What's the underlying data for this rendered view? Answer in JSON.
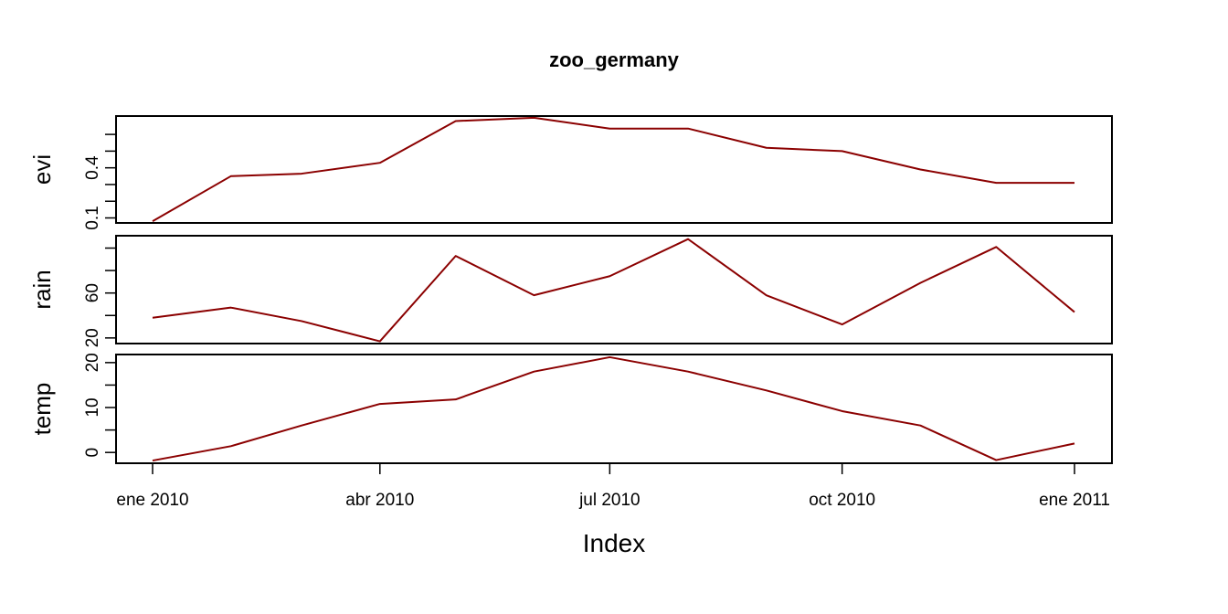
{
  "chart_data": {
    "type": "line",
    "title": "zoo_germany",
    "xlabel": "Index",
    "x": [
      "2010-01-01",
      "2010-02-01",
      "2010-03-01",
      "2010-04-01",
      "2010-05-01",
      "2010-06-01",
      "2010-07-01",
      "2010-08-01",
      "2010-09-01",
      "2010-10-01",
      "2010-11-01",
      "2010-12-01",
      "2011-01-01"
    ],
    "x_ticks": [
      {
        "date": "2010-01-01",
        "label": "ene 2010"
      },
      {
        "date": "2010-04-01",
        "label": "abr 2010"
      },
      {
        "date": "2010-07-01",
        "label": "jul 2010"
      },
      {
        "date": "2010-10-01",
        "label": "oct 2010"
      },
      {
        "date": "2011-01-01",
        "label": "ene 2011"
      }
    ],
    "line_color": "#8B0000",
    "panels": [
      {
        "name": "evi",
        "values": [
          0.08,
          0.35,
          0.365,
          0.43,
          0.68,
          0.7,
          0.635,
          0.635,
          0.52,
          0.5,
          0.39,
          0.31,
          0.31
        ],
        "ylim": [
          0.07,
          0.71
        ],
        "ticks": [
          0.1,
          0.2,
          0.3,
          0.4,
          0.5,
          0.6
        ],
        "tick_labels": [
          {
            "value": 0.1,
            "label": "0.1"
          },
          {
            "value": 0.4,
            "label": "0.4"
          }
        ]
      },
      {
        "name": "rain",
        "values": [
          38,
          47,
          35,
          17,
          93,
          58,
          75,
          108,
          58,
          32,
          69,
          101,
          43
        ],
        "ylim": [
          15,
          111
        ],
        "ticks": [
          20,
          40,
          60,
          80,
          100
        ],
        "tick_labels": [
          {
            "value": 20,
            "label": "20"
          },
          {
            "value": 60,
            "label": "60"
          }
        ]
      },
      {
        "name": "temp",
        "values": [
          -1.8,
          1.4,
          6.0,
          10.8,
          11.8,
          18.0,
          21.2,
          18.0,
          13.8,
          9.2,
          6.0,
          -1.7,
          2.0
        ],
        "ylim": [
          -2.4,
          21.8
        ],
        "ticks": [
          0,
          5,
          10,
          15,
          20
        ],
        "tick_labels": [
          {
            "value": 0,
            "label": "0"
          },
          {
            "value": 10,
            "label": "10"
          },
          {
            "value": 20,
            "label": "20"
          }
        ]
      }
    ]
  }
}
